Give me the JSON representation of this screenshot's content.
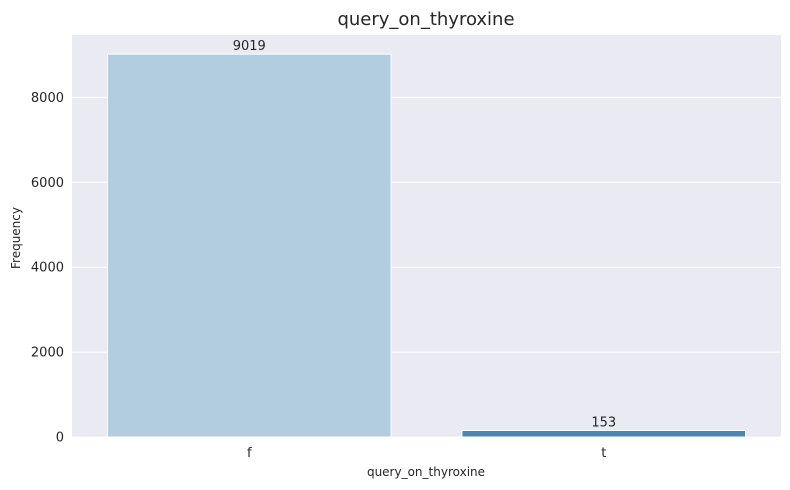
{
  "chart_data": {
    "type": "bar",
    "title": "query_on_thyroxine",
    "xlabel": "query_on_thyroxine",
    "ylabel": "Frequency",
    "categories": [
      "f",
      "t"
    ],
    "values": [
      9019,
      153
    ],
    "data_labels": [
      "9019",
      "153"
    ],
    "ylim": [
      0,
      9470
    ],
    "yticks": [
      0,
      2000,
      4000,
      6000,
      8000
    ],
    "ytick_labels": [
      "0",
      "2000",
      "4000",
      "6000",
      "8000"
    ],
    "grid": true,
    "colors": {
      "plot_background": "#eaeaf2",
      "grid": "#ffffff",
      "bars": [
        "#b3cde0",
        "#4a86b0"
      ]
    }
  }
}
